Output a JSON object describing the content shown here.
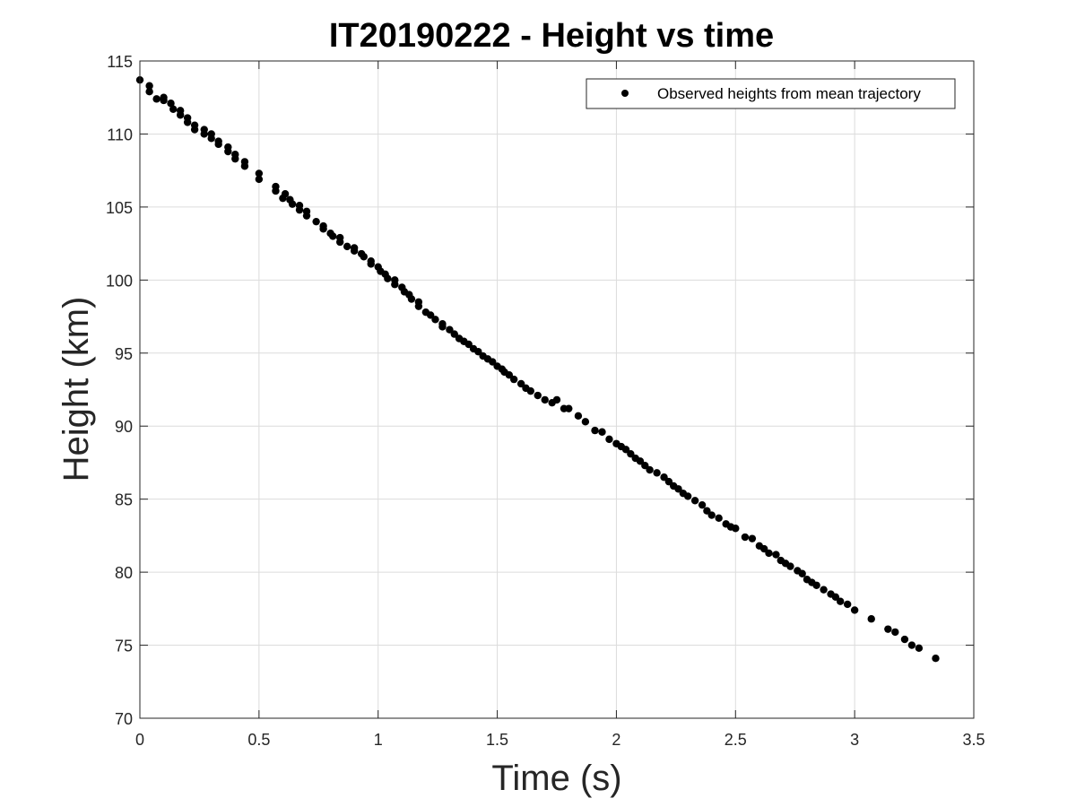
{
  "chart_data": {
    "type": "scatter",
    "title": "IT20190222 - Height vs time",
    "xlabel": "Time (s)",
    "ylabel": "Height (km)",
    "xlim": [
      0,
      3.5
    ],
    "ylim": [
      70,
      115
    ],
    "xticks": [
      0,
      0.5,
      1,
      1.5,
      2,
      2.5,
      3,
      3.5
    ],
    "xtick_labels": [
      "0",
      "0.5",
      "1",
      "1.5",
      "2",
      "2.5",
      "3",
      "3.5"
    ],
    "yticks": [
      70,
      75,
      80,
      85,
      90,
      95,
      100,
      105,
      110,
      115
    ],
    "ytick_labels": [
      "70",
      "75",
      "80",
      "85",
      "90",
      "95",
      "100",
      "105",
      "110",
      "115"
    ],
    "grid": true,
    "legend_position": "top-right",
    "series": [
      {
        "name": "Observed heights from mean trajectory",
        "color": "#000000",
        "marker": "filled-circle",
        "points": [
          [
            0.0,
            113.7
          ],
          [
            0.04,
            113.3
          ],
          [
            0.04,
            112.9
          ],
          [
            0.07,
            112.4
          ],
          [
            0.1,
            112.3
          ],
          [
            0.1,
            112.5
          ],
          [
            0.13,
            112.1
          ],
          [
            0.14,
            111.7
          ],
          [
            0.17,
            111.3
          ],
          [
            0.17,
            111.6
          ],
          [
            0.2,
            111.1
          ],
          [
            0.2,
            110.8
          ],
          [
            0.23,
            110.6
          ],
          [
            0.23,
            110.3
          ],
          [
            0.27,
            110.0
          ],
          [
            0.27,
            110.3
          ],
          [
            0.3,
            109.7
          ],
          [
            0.3,
            110.0
          ],
          [
            0.33,
            109.3
          ],
          [
            0.33,
            109.5
          ],
          [
            0.37,
            108.8
          ],
          [
            0.37,
            109.1
          ],
          [
            0.4,
            108.3
          ],
          [
            0.4,
            108.6
          ],
          [
            0.44,
            107.8
          ],
          [
            0.44,
            108.1
          ],
          [
            0.5,
            107.3
          ],
          [
            0.5,
            106.9
          ],
          [
            0.57,
            106.4
          ],
          [
            0.57,
            106.1
          ],
          [
            0.6,
            105.6
          ],
          [
            0.61,
            105.9
          ],
          [
            0.63,
            105.5
          ],
          [
            0.64,
            105.2
          ],
          [
            0.67,
            104.8
          ],
          [
            0.67,
            105.1
          ],
          [
            0.7,
            104.4
          ],
          [
            0.7,
            104.7
          ],
          [
            0.74,
            104.0
          ],
          [
            0.77,
            103.7
          ],
          [
            0.77,
            103.5
          ],
          [
            0.8,
            103.2
          ],
          [
            0.81,
            103.0
          ],
          [
            0.84,
            102.9
          ],
          [
            0.84,
            102.6
          ],
          [
            0.87,
            102.3
          ],
          [
            0.9,
            102.0
          ],
          [
            0.9,
            102.2
          ],
          [
            0.93,
            101.8
          ],
          [
            0.94,
            101.6
          ],
          [
            0.97,
            101.3
          ],
          [
            0.97,
            101.1
          ],
          [
            1.0,
            100.9
          ],
          [
            1.01,
            100.6
          ],
          [
            1.03,
            100.4
          ],
          [
            1.04,
            100.1
          ],
          [
            1.07,
            100.0
          ],
          [
            1.07,
            99.7
          ],
          [
            1.1,
            99.5
          ],
          [
            1.11,
            99.2
          ],
          [
            1.13,
            99.0
          ],
          [
            1.14,
            98.7
          ],
          [
            1.17,
            98.5
          ],
          [
            1.17,
            98.2
          ],
          [
            1.2,
            97.8
          ],
          [
            1.22,
            97.6
          ],
          [
            1.24,
            97.3
          ],
          [
            1.27,
            97.0
          ],
          [
            1.27,
            96.8
          ],
          [
            1.3,
            96.6
          ],
          [
            1.32,
            96.3
          ],
          [
            1.34,
            96.0
          ],
          [
            1.36,
            95.8
          ],
          [
            1.38,
            95.6
          ],
          [
            1.4,
            95.3
          ],
          [
            1.42,
            95.1
          ],
          [
            1.44,
            94.8
          ],
          [
            1.46,
            94.6
          ],
          [
            1.48,
            94.4
          ],
          [
            1.5,
            94.1
          ],
          [
            1.52,
            93.9
          ],
          [
            1.53,
            93.7
          ],
          [
            1.55,
            93.5
          ],
          [
            1.57,
            93.2
          ],
          [
            1.6,
            92.9
          ],
          [
            1.62,
            92.6
          ],
          [
            1.64,
            92.4
          ],
          [
            1.67,
            92.1
          ],
          [
            1.7,
            91.8
          ],
          [
            1.73,
            91.6
          ],
          [
            1.75,
            91.8
          ],
          [
            1.78,
            91.2
          ],
          [
            1.8,
            91.2
          ],
          [
            1.84,
            90.7
          ],
          [
            1.87,
            90.3
          ],
          [
            1.91,
            89.7
          ],
          [
            1.94,
            89.6
          ],
          [
            1.97,
            89.1
          ],
          [
            2.0,
            88.8
          ],
          [
            2.02,
            88.6
          ],
          [
            2.04,
            88.4
          ],
          [
            2.06,
            88.1
          ],
          [
            2.08,
            87.8
          ],
          [
            2.1,
            87.6
          ],
          [
            2.12,
            87.3
          ],
          [
            2.14,
            87.0
          ],
          [
            2.17,
            86.8
          ],
          [
            2.2,
            86.5
          ],
          [
            2.22,
            86.2
          ],
          [
            2.24,
            85.9
          ],
          [
            2.26,
            85.7
          ],
          [
            2.28,
            85.4
          ],
          [
            2.3,
            85.2
          ],
          [
            2.33,
            84.9
          ],
          [
            2.36,
            84.6
          ],
          [
            2.38,
            84.2
          ],
          [
            2.4,
            83.9
          ],
          [
            2.43,
            83.7
          ],
          [
            2.46,
            83.3
          ],
          [
            2.48,
            83.1
          ],
          [
            2.5,
            83.0
          ],
          [
            2.54,
            82.4
          ],
          [
            2.57,
            82.3
          ],
          [
            2.6,
            81.8
          ],
          [
            2.62,
            81.6
          ],
          [
            2.64,
            81.3
          ],
          [
            2.67,
            81.2
          ],
          [
            2.69,
            80.8
          ],
          [
            2.71,
            80.6
          ],
          [
            2.73,
            80.4
          ],
          [
            2.76,
            80.1
          ],
          [
            2.78,
            79.9
          ],
          [
            2.8,
            79.5
          ],
          [
            2.82,
            79.3
          ],
          [
            2.84,
            79.1
          ],
          [
            2.87,
            78.8
          ],
          [
            2.9,
            78.5
          ],
          [
            2.92,
            78.3
          ],
          [
            2.94,
            78.0
          ],
          [
            2.97,
            77.8
          ],
          [
            3.0,
            77.4
          ],
          [
            3.07,
            76.8
          ],
          [
            3.14,
            76.1
          ],
          [
            3.17,
            75.9
          ],
          [
            3.21,
            75.4
          ],
          [
            3.24,
            75.0
          ],
          [
            3.27,
            74.8
          ],
          [
            3.34,
            74.1
          ]
        ]
      }
    ]
  }
}
